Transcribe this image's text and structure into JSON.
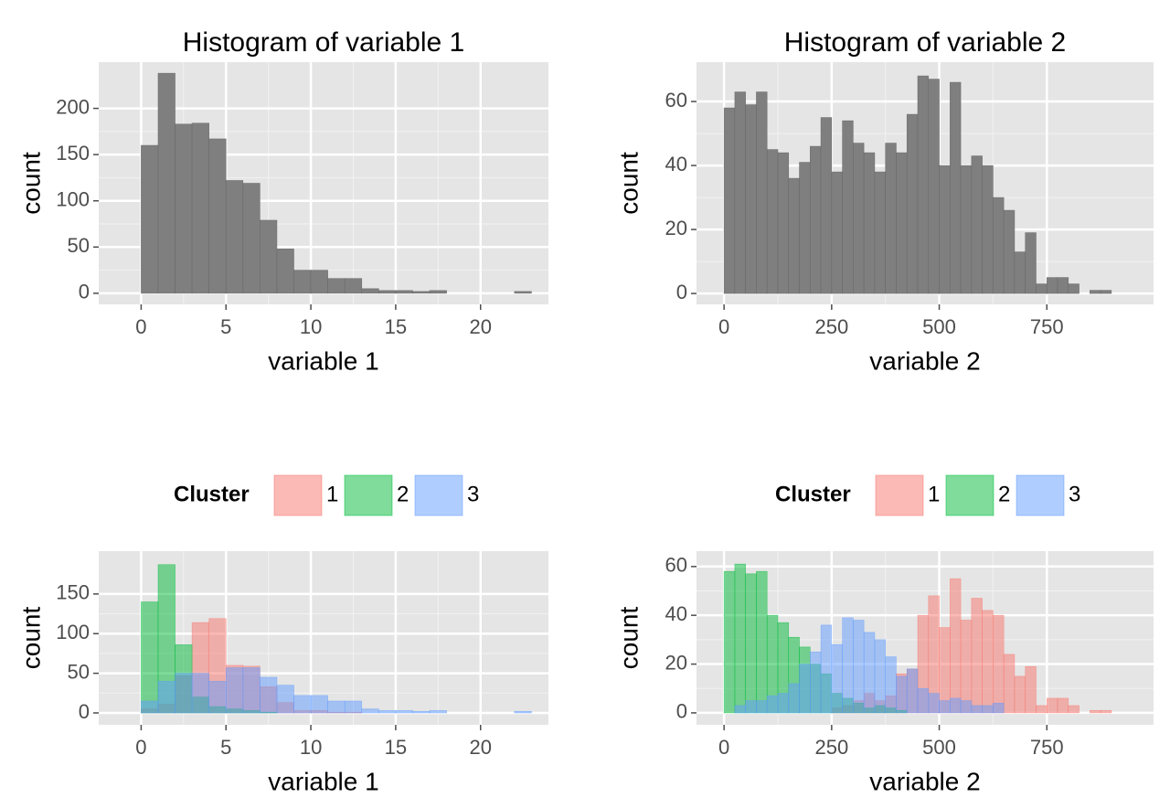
{
  "chart_data": [
    {
      "type": "histogram",
      "title": "Histogram of variable 1",
      "xlabel": "variable 1",
      "ylabel": "count",
      "bins": [
        -1,
        0,
        1,
        2,
        3,
        4,
        5,
        6,
        7,
        8,
        9,
        10,
        11,
        12,
        13,
        14,
        15,
        16,
        17,
        18,
        19,
        20,
        21,
        22,
        23
      ],
      "values": [
        0,
        160,
        238,
        183,
        184,
        167,
        122,
        119,
        79,
        48,
        25,
        25,
        16,
        16,
        5,
        3,
        3,
        2,
        3,
        0,
        0,
        0,
        0,
        2
      ],
      "color": "#7f7f7f",
      "xlim": [
        -2.5,
        24
      ],
      "ylim": [
        -12,
        250
      ],
      "xticks": [
        0,
        5,
        10,
        15,
        20
      ],
      "yticks": [
        0,
        50,
        100,
        150,
        200
      ],
      "grid": true
    },
    {
      "type": "histogram",
      "title": "Histogram of variable 2",
      "xlabel": "variable 2",
      "ylabel": "count",
      "bins": [
        0,
        25,
        50,
        75,
        100,
        125,
        150,
        175,
        200,
        225,
        250,
        275,
        300,
        325,
        350,
        375,
        400,
        425,
        450,
        475,
        500,
        525,
        550,
        575,
        600,
        625,
        650,
        675,
        700,
        725,
        750,
        775,
        800,
        825,
        850,
        875,
        900,
        925
      ],
      "values": [
        58,
        63,
        59,
        63,
        45,
        44,
        36,
        41,
        46,
        55,
        38,
        54,
        47,
        44,
        38,
        47,
        44,
        56,
        68,
        67,
        40,
        66,
        40,
        43,
        40,
        30,
        26,
        13,
        19,
        3,
        5,
        5,
        3,
        0,
        1,
        1,
        0
      ],
      "color": "#7f7f7f",
      "xlim": [
        -64,
        998
      ],
      "ylim": [
        -3.4,
        72.3
      ],
      "xticks": [
        0,
        250,
        500,
        750
      ],
      "yticks": [
        0,
        20,
        40,
        60
      ],
      "grid": true
    },
    {
      "type": "histogram",
      "xlabel": "variable 1",
      "ylabel": "count",
      "legend_title": "Cluster",
      "legend": "top",
      "bins": [
        -1,
        0,
        1,
        2,
        3,
        4,
        5,
        6,
        7,
        8,
        9,
        10,
        11,
        12,
        13,
        14,
        15,
        16,
        17,
        18,
        19,
        20,
        21,
        22,
        23
      ],
      "series": [
        {
          "name": "1",
          "color": "#F8766D",
          "values": [
            0,
            5,
            11,
            47,
            114,
            119,
            60,
            59,
            33,
            13,
            3,
            3,
            1,
            1,
            0,
            0,
            0,
            0,
            0,
            0,
            0,
            0,
            0,
            0
          ]
        },
        {
          "name": "2",
          "color": "#00BA38",
          "values": [
            0,
            140,
            187,
            86,
            20,
            8,
            5,
            3,
            1,
            0,
            0,
            0,
            0,
            0,
            0,
            0,
            0,
            0,
            0,
            0,
            0,
            0,
            0,
            0
          ]
        },
        {
          "name": "3",
          "color": "#619CFF",
          "values": [
            0,
            15,
            40,
            50,
            50,
            40,
            57,
            57,
            45,
            35,
            22,
            22,
            15,
            15,
            5,
            3,
            3,
            2,
            3,
            0,
            0,
            0,
            0,
            2
          ]
        }
      ],
      "xlim": [
        -2.5,
        24
      ],
      "ylim": [
        -15,
        204
      ],
      "xticks": [
        0,
        5,
        10,
        15,
        20
      ],
      "yticks": [
        0,
        50,
        100,
        150
      ],
      "grid": true
    },
    {
      "type": "histogram",
      "xlabel": "variable 2",
      "ylabel": "count",
      "legend_title": "Cluster",
      "legend": "top",
      "bins": [
        0,
        25,
        50,
        75,
        100,
        125,
        150,
        175,
        200,
        225,
        250,
        275,
        300,
        325,
        350,
        375,
        400,
        425,
        450,
        475,
        500,
        525,
        550,
        575,
        600,
        625,
        650,
        675,
        700,
        725,
        750,
        775,
        800,
        825,
        850,
        875,
        900,
        925
      ],
      "series": [
        {
          "name": "1",
          "color": "#F8766D",
          "values": [
            0,
            0,
            0,
            0,
            0,
            0,
            0,
            0,
            0,
            0,
            2,
            3,
            5,
            8,
            5,
            7,
            16,
            18,
            40,
            48,
            35,
            55,
            38,
            47,
            42,
            40,
            24,
            15,
            19,
            3,
            6,
            6,
            3,
            0,
            1,
            1,
            0
          ]
        },
        {
          "name": "2",
          "color": "#00BA38",
          "values": [
            58,
            61,
            57,
            58,
            40,
            37,
            31,
            27,
            20,
            16,
            8,
            6,
            4,
            2,
            3,
            2,
            1,
            0,
            0,
            0,
            0,
            0,
            0,
            0,
            0,
            0,
            0,
            0,
            0,
            0,
            0,
            0,
            0,
            0,
            0,
            0,
            0
          ]
        },
        {
          "name": "3",
          "color": "#619CFF",
          "values": [
            0,
            3,
            5,
            5,
            7,
            8,
            12,
            20,
            25,
            36,
            28,
            39,
            38,
            33,
            30,
            23,
            15,
            18,
            10,
            8,
            5,
            6,
            5,
            3,
            3,
            4,
            0,
            0,
            0,
            0,
            0,
            0,
            0,
            0,
            0,
            0,
            0
          ]
        }
      ],
      "xlim": [
        -64,
        998
      ],
      "ylim": [
        -4.9,
        66.3
      ],
      "xticks": [
        0,
        250,
        500,
        750
      ],
      "yticks": [
        0,
        20,
        40,
        60
      ],
      "grid": true
    }
  ]
}
